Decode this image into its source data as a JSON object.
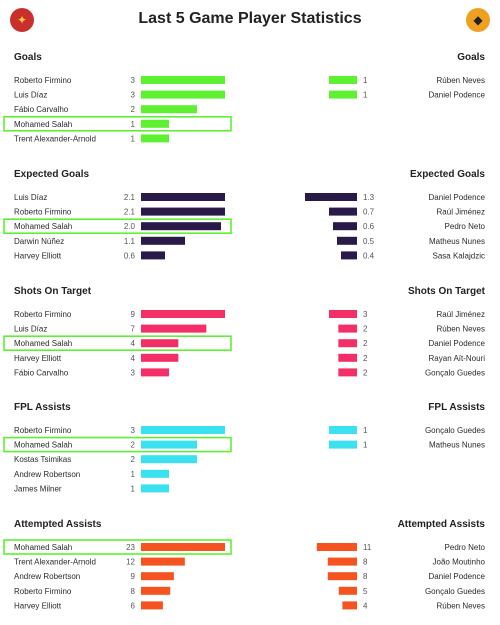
{
  "page": {
    "title": "Last 5 Game Player Statistics",
    "left_badge_icon": "liverpool-crest-icon",
    "right_badge_icon": "wolves-crest-icon"
  },
  "chart_data": [
    {
      "type": "bar",
      "title": "Goals",
      "color": "#5ef132",
      "max": 3,
      "left": {
        "players": [
          "Roberto Firmino",
          "Luis Díaz",
          "Fábio Carvalho",
          "Mohamed Salah",
          "Trent Alexander-Arnold"
        ],
        "values": [
          "3",
          "3",
          "2",
          "1",
          "1"
        ]
      },
      "right": {
        "players": [
          "Rúben Neves",
          "Daniel Podence"
        ],
        "values": [
          "1",
          "1"
        ]
      },
      "highlight": 3
    },
    {
      "type": "bar",
      "title": "Expected Goals",
      "color": "#2a1a47",
      "max": 2.1,
      "left": {
        "players": [
          "Luis Díaz",
          "Roberto Firmino",
          "Mohamed Salah",
          "Darwin Núñez",
          "Harvey Elliott"
        ],
        "values": [
          "2.1",
          "2.1",
          "2.0",
          "1.1",
          "0.6"
        ]
      },
      "right": {
        "players": [
          "Daniel Podence",
          "Raúl Jiménez",
          "Pedro Neto",
          "Matheus Nunes",
          "Sasa Kalajdzic"
        ],
        "values": [
          "1.3",
          "0.7",
          "0.6",
          "0.5",
          "0.4"
        ]
      },
      "highlight": 2
    },
    {
      "type": "bar",
      "title": "Shots On Target",
      "color": "#f32f68",
      "max": 9,
      "left": {
        "players": [
          "Roberto Firmino",
          "Luis Díaz",
          "Mohamed Salah",
          "Harvey Elliott",
          "Fábio Carvalho"
        ],
        "values": [
          "9",
          "7",
          "4",
          "4",
          "3"
        ]
      },
      "right": {
        "players": [
          "Raúl Jiménez",
          "Rúben Neves",
          "Daniel Podence",
          "Rayan Aït-Nouri",
          "Gonçalo Guedes"
        ],
        "values": [
          "3",
          "2",
          "2",
          "2",
          "2"
        ]
      },
      "highlight": 2
    },
    {
      "type": "bar",
      "title": "FPL Assists",
      "color": "#3ce1f0",
      "max": 3,
      "left": {
        "players": [
          "Roberto Firmino",
          "Mohamed Salah",
          "Kostas Tsimikas",
          "Andrew Robertson",
          "James Milner"
        ],
        "values": [
          "3",
          "2",
          "2",
          "1",
          "1"
        ]
      },
      "right": {
        "players": [
          "Gonçalo Guedes",
          "Matheus Nunes"
        ],
        "values": [
          "1",
          "1"
        ]
      },
      "highlight": 1
    },
    {
      "type": "bar",
      "title": "Attempted Assists",
      "color": "#f5531f",
      "max": 23,
      "left": {
        "players": [
          "Mohamed Salah",
          "Trent Alexander-Arnold",
          "Andrew Robertson",
          "Roberto Firmino",
          "Harvey Elliott"
        ],
        "values": [
          "23",
          "12",
          "9",
          "8",
          "6"
        ]
      },
      "right": {
        "players": [
          "Pedro Neto",
          "João Moutinho",
          "Daniel Podence",
          "Gonçalo Guedes",
          "Rúben Neves"
        ],
        "values": [
          "11",
          "8",
          "8",
          "5",
          "4"
        ]
      },
      "highlight": 0
    }
  ]
}
